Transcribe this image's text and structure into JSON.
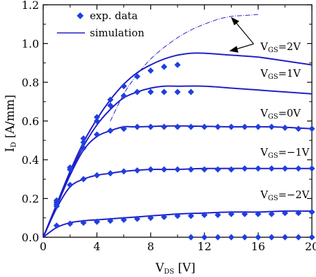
{
  "chart_data": {
    "type": "scatter",
    "xlabel": "V",
    "xlabel_sub": "DS",
    "xlabel_unit": " [V]",
    "ylabel": "I",
    "ylabel_sub": "D",
    "ylabel_unit": " [A/mm]",
    "xlim": [
      0,
      20
    ],
    "ylim": [
      0,
      1.2
    ],
    "xticks": [
      0,
      4,
      8,
      12,
      16,
      20
    ],
    "yticks": [
      0.0,
      0.2,
      0.4,
      0.6,
      0.8,
      1.0,
      1.2
    ],
    "xtick_labels": [
      "0",
      "4",
      "8",
      "12",
      "16",
      "20"
    ],
    "ytick_labels": [
      "0.0",
      "0.2",
      "0.4",
      "0.6",
      "0.8",
      "1.0",
      "1.2"
    ],
    "legend": {
      "position": "top-left",
      "marker_label": "exp. data",
      "line_label": "simulation"
    },
    "marker_color": "#1f3fe0",
    "line_color": "#1f1fc8",
    "series": [
      {
        "label_main": "V",
        "label_sub": "GS",
        "label_value": "=2V",
        "exp": [
          [
            1,
            0.19
          ],
          [
            2,
            0.36
          ],
          [
            3,
            0.51
          ],
          [
            4,
            0.62
          ],
          [
            5,
            0.71
          ],
          [
            6,
            0.78
          ],
          [
            7,
            0.83
          ],
          [
            8,
            0.86
          ],
          [
            9,
            0.88
          ],
          [
            10,
            0.89
          ]
        ],
        "sim": [
          [
            0,
            0
          ],
          [
            1,
            0.17
          ],
          [
            2,
            0.34
          ],
          [
            3,
            0.49
          ],
          [
            4,
            0.61
          ],
          [
            5,
            0.71
          ],
          [
            6,
            0.79
          ],
          [
            7,
            0.85
          ],
          [
            8,
            0.89
          ],
          [
            9,
            0.92
          ],
          [
            10,
            0.94
          ],
          [
            11,
            0.95
          ],
          [
            12,
            0.95
          ],
          [
            14,
            0.94
          ],
          [
            16,
            0.93
          ],
          [
            18,
            0.91
          ],
          [
            20,
            0.89
          ]
        ]
      },
      {
        "label_main": "V",
        "label_sub": "GS",
        "label_value": "=1V",
        "exp": [
          [
            1,
            0.18
          ],
          [
            2,
            0.35
          ],
          [
            3,
            0.49
          ],
          [
            4,
            0.6
          ],
          [
            5,
            0.68
          ],
          [
            6,
            0.73
          ],
          [
            7,
            0.75
          ],
          [
            8,
            0.75
          ],
          [
            9,
            0.75
          ],
          [
            10,
            0.75
          ],
          [
            11,
            0.75
          ]
        ],
        "sim": [
          [
            0,
            0
          ],
          [
            1,
            0.16
          ],
          [
            2,
            0.33
          ],
          [
            3,
            0.47
          ],
          [
            4,
            0.58
          ],
          [
            5,
            0.66
          ],
          [
            6,
            0.72
          ],
          [
            7,
            0.75
          ],
          [
            8,
            0.77
          ],
          [
            9,
            0.78
          ],
          [
            10,
            0.78
          ],
          [
            12,
            0.78
          ],
          [
            14,
            0.77
          ],
          [
            16,
            0.76
          ],
          [
            18,
            0.75
          ],
          [
            20,
            0.74
          ]
        ]
      },
      {
        "label_main": "V",
        "label_sub": "GS",
        "label_value": "=0V",
        "exp": [
          [
            1,
            0.17
          ],
          [
            2,
            0.35
          ],
          [
            3,
            0.46
          ],
          [
            4,
            0.53
          ],
          [
            5,
            0.55
          ],
          [
            6,
            0.56
          ],
          [
            7,
            0.57
          ],
          [
            8,
            0.57
          ],
          [
            9,
            0.57
          ],
          [
            10,
            0.57
          ],
          [
            11,
            0.57
          ],
          [
            12,
            0.57
          ],
          [
            13,
            0.57
          ],
          [
            14,
            0.57
          ],
          [
            15,
            0.57
          ],
          [
            16,
            0.57
          ],
          [
            17,
            0.57
          ],
          [
            18,
            0.565
          ],
          [
            19,
            0.56
          ],
          [
            20,
            0.56
          ]
        ],
        "sim": [
          [
            0,
            0
          ],
          [
            1,
            0.16
          ],
          [
            2,
            0.32
          ],
          [
            3,
            0.45
          ],
          [
            4,
            0.52
          ],
          [
            5,
            0.55
          ],
          [
            6,
            0.57
          ],
          [
            7,
            0.57
          ],
          [
            10,
            0.575
          ],
          [
            14,
            0.57
          ],
          [
            17,
            0.57
          ],
          [
            20,
            0.56
          ]
        ]
      },
      {
        "label_main": "V",
        "label_sub": "GS",
        "label_value": "=−1V",
        "exp": [
          [
            1,
            0.16
          ],
          [
            2,
            0.27
          ],
          [
            3,
            0.3
          ],
          [
            4,
            0.32
          ],
          [
            5,
            0.33
          ],
          [
            6,
            0.34
          ],
          [
            7,
            0.345
          ],
          [
            8,
            0.35
          ],
          [
            9,
            0.35
          ],
          [
            10,
            0.35
          ],
          [
            11,
            0.35
          ],
          [
            12,
            0.35
          ],
          [
            13,
            0.35
          ],
          [
            14,
            0.35
          ],
          [
            15,
            0.355
          ],
          [
            16,
            0.355
          ],
          [
            17,
            0.355
          ],
          [
            18,
            0.355
          ],
          [
            19,
            0.355
          ],
          [
            20,
            0.355
          ]
        ],
        "sim": [
          [
            0,
            0
          ],
          [
            1,
            0.15
          ],
          [
            2,
            0.26
          ],
          [
            3,
            0.3
          ],
          [
            4,
            0.32
          ],
          [
            5,
            0.33
          ],
          [
            6,
            0.34
          ],
          [
            8,
            0.35
          ],
          [
            10,
            0.35
          ],
          [
            12,
            0.355
          ],
          [
            16,
            0.355
          ],
          [
            20,
            0.355
          ]
        ]
      },
      {
        "label_main": "V",
        "label_sub": "GS",
        "label_value": "=−2V",
        "exp": [
          [
            1,
            0.06
          ],
          [
            2,
            0.07
          ],
          [
            3,
            0.075
          ],
          [
            4,
            0.08
          ],
          [
            5,
            0.085
          ],
          [
            6,
            0.09
          ],
          [
            7,
            0.095
          ],
          [
            8,
            0.1
          ],
          [
            9,
            0.105
          ],
          [
            10,
            0.11
          ],
          [
            11,
            0.11
          ],
          [
            12,
            0.115
          ],
          [
            13,
            0.115
          ],
          [
            14,
            0.12
          ],
          [
            15,
            0.12
          ],
          [
            16,
            0.12
          ],
          [
            17,
            0.12
          ],
          [
            18,
            0.125
          ],
          [
            19,
            0.125
          ],
          [
            20,
            0.13
          ]
        ],
        "sim": [
          [
            0,
            0
          ],
          [
            1,
            0.05
          ],
          [
            2,
            0.075
          ],
          [
            3,
            0.085
          ],
          [
            4,
            0.09
          ],
          [
            6,
            0.1
          ],
          [
            8,
            0.11
          ],
          [
            10,
            0.12
          ],
          [
            12,
            0.125
          ],
          [
            14,
            0.13
          ],
          [
            16,
            0.13
          ],
          [
            18,
            0.135
          ],
          [
            20,
            0.135
          ]
        ]
      },
      {
        "exp": [
          [
            11,
            0.0
          ],
          [
            12,
            0.0
          ],
          [
            13,
            0.0
          ],
          [
            14,
            0.0
          ],
          [
            15,
            0.0
          ],
          [
            16,
            0.0
          ],
          [
            17,
            0.0
          ],
          [
            18,
            0.0
          ],
          [
            19,
            0.0
          ],
          [
            20,
            0.0
          ]
        ],
        "sim": []
      }
    ],
    "dashed_curve": [
      [
        5,
        0.6
      ],
      [
        6,
        0.74
      ],
      [
        7,
        0.84
      ],
      [
        8,
        0.92
      ],
      [
        9,
        0.98
      ],
      [
        10,
        1.03
      ],
      [
        11,
        1.07
      ],
      [
        12,
        1.1
      ],
      [
        13,
        1.125
      ],
      [
        14,
        1.14
      ],
      [
        15,
        1.145
      ],
      [
        16,
        1.15
      ]
    ]
  }
}
